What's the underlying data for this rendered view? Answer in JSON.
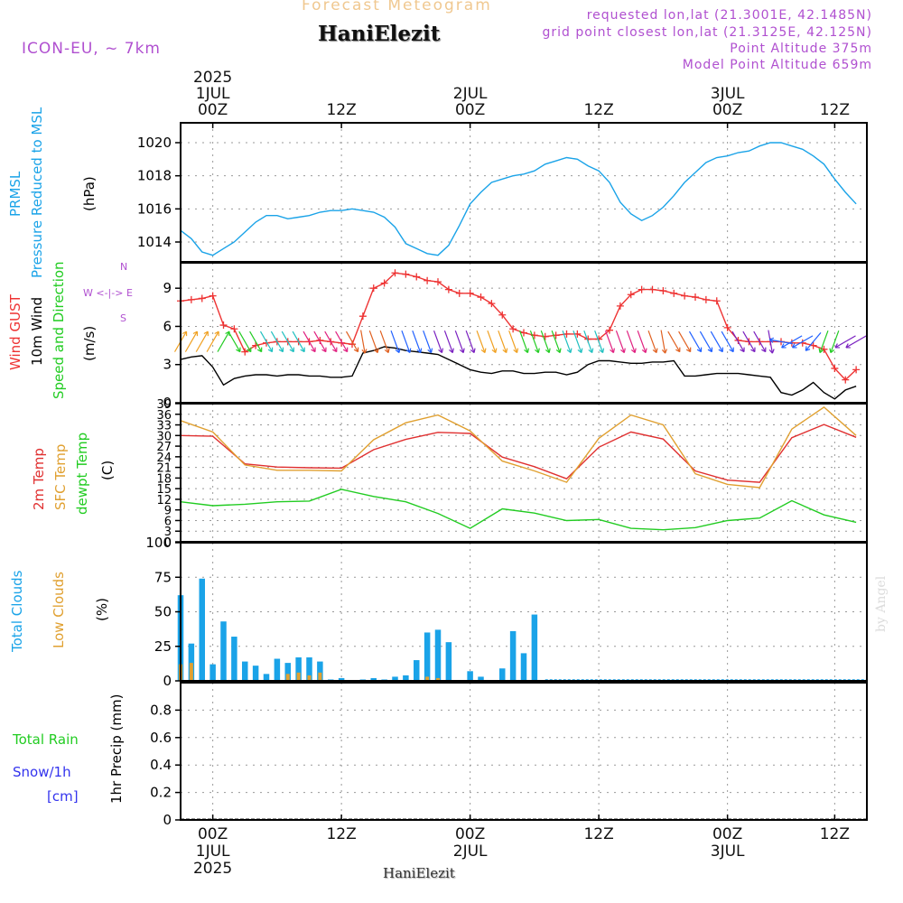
{
  "header": {
    "watermark_title": "Forecast Meteogram",
    "site_name": "HaniElezit",
    "model": "ICON-EU, ~ 7km",
    "requested": "requested lon,lat (21.3001E, 42.1485N)",
    "grid_point": "grid point closest lon,lat (21.3125E, 42.125N)",
    "point_altitude": "Point Altitude 375m",
    "model_altitude": "Model Point Altitude 659m"
  },
  "footer": {
    "site_name": "HaniElezit",
    "credit": "by Angel"
  },
  "time_axis": {
    "top_labels": [
      {
        "lines": [
          "2025",
          "1JUL",
          "00Z"
        ]
      },
      {
        "lines": [
          "12Z"
        ]
      },
      {
        "lines": [
          "2JUL",
          "00Z"
        ]
      },
      {
        "lines": [
          "12Z"
        ]
      },
      {
        "lines": [
          "3JUL",
          "00Z"
        ]
      },
      {
        "lines": [
          "12Z"
        ]
      }
    ],
    "bottom_labels": [
      {
        "lines": [
          "00Z",
          "1JUL",
          "2025"
        ]
      },
      {
        "lines": [
          "12Z"
        ]
      },
      {
        "lines": [
          "00Z",
          "2JUL"
        ]
      },
      {
        "lines": [
          "12Z"
        ]
      },
      {
        "lines": [
          "00Z",
          "3JUL"
        ]
      },
      {
        "lines": [
          "12Z"
        ]
      }
    ]
  },
  "labels": {
    "prmsl": "PRMSL",
    "pressure": "Pressure Reduced to MSL",
    "hpa": "(hPa)",
    "wind_gust": "Wind GUST",
    "wind_10m": "10m Wind",
    "wind_dir": "Speed and Direction",
    "ms": "(m/s)",
    "compass_we": "W <-|-> E",
    "compass_n": "N",
    "compass_s": "S",
    "temp_2m": "2m Temp",
    "temp_sfc": "SFC Temp",
    "temp_dew": "dewpt Temp",
    "temp_unit": "(C)",
    "total_clouds": "Total Clouds",
    "low_clouds": "Low Clouds",
    "pct": "(%)",
    "total_rain": "Total  Rain",
    "snow": "Snow/1h",
    "snow_unit": "[cm]",
    "precip": "1hr Precip (mm)"
  },
  "colors": {
    "pressure": "#1aa3e8",
    "gust": "#ee3333",
    "wind": "#000000",
    "temp2m": "#e03030",
    "sfc": "#e0a030",
    "dew": "#22cc22",
    "total_cloud": "#1aa3e8",
    "low_cloud": "#e0a030",
    "rain": "#22cc22",
    "snow": "#3333ee",
    "purple": "#b050d0"
  },
  "chart_data": [
    {
      "type": "line",
      "panel": "pressure",
      "x_unit": "hours from 2025-06-30 21Z",
      "ylim": [
        1012.8,
        1021.2
      ],
      "yticks": [
        1014,
        1016,
        1018,
        1020
      ],
      "grid": true,
      "series": [
        {
          "name": "PRMSL",
          "x": [
            0,
            1,
            2,
            3,
            4,
            5,
            6,
            7,
            8,
            9,
            10,
            11,
            12,
            13,
            14,
            15,
            16,
            17,
            18,
            19,
            20,
            21,
            22,
            23,
            24,
            25,
            26,
            27,
            28,
            29,
            30,
            31,
            32,
            33,
            34,
            35,
            36,
            37,
            38,
            39,
            40,
            41,
            42,
            43,
            44,
            45,
            46,
            47,
            48,
            49,
            50,
            51,
            52,
            53,
            54,
            55,
            56,
            57,
            58,
            59,
            60,
            61,
            62,
            63
          ],
          "y": [
            1014.7,
            1014.2,
            1013.4,
            1013.2,
            1013.6,
            1014.0,
            1014.6,
            1015.2,
            1015.6,
            1015.6,
            1015.4,
            1015.5,
            1015.6,
            1015.8,
            1015.9,
            1015.9,
            1016.0,
            1015.9,
            1015.8,
            1015.5,
            1014.9,
            1013.9,
            1013.6,
            1013.3,
            1013.2,
            1013.8,
            1015.0,
            1016.3,
            1017.0,
            1017.6,
            1017.8,
            1018.0,
            1018.1,
            1018.3,
            1018.7,
            1018.9,
            1019.1,
            1019.0,
            1018.6,
            1018.3,
            1017.6,
            1016.4,
            1015.7,
            1015.3,
            1015.6,
            1016.1,
            1016.8,
            1017.6,
            1018.2,
            1018.8,
            1019.1,
            1019.2,
            1019.4,
            1019.5,
            1019.8,
            1020.0,
            1020.0,
            1019.8,
            1019.6,
            1019.2,
            1018.7,
            1017.8,
            1017.0,
            1016.3
          ]
        }
      ]
    },
    {
      "type": "line",
      "panel": "wind",
      "ylim": [
        0,
        11
      ],
      "yticks": [
        0,
        3,
        6,
        9
      ],
      "grid": true,
      "series": [
        {
          "name": "Wind GUST",
          "x": [
            0,
            1,
            2,
            3,
            4,
            5,
            6,
            7,
            8,
            9,
            10,
            11,
            12,
            13,
            14,
            15,
            16,
            17,
            18,
            19,
            20,
            21,
            22,
            23,
            24,
            25,
            26,
            27,
            28,
            29,
            30,
            31,
            32,
            33,
            34,
            35,
            36,
            37,
            38,
            39,
            40,
            41,
            42,
            43,
            44,
            45,
            46,
            47,
            48,
            49,
            50,
            51,
            52,
            53,
            54,
            55,
            56,
            57,
            58,
            59,
            60,
            61,
            62,
            63
          ],
          "y": [
            8.0,
            8.1,
            8.2,
            8.4,
            6.1,
            5.8,
            4.0,
            4.5,
            4.7,
            4.8,
            4.8,
            4.8,
            4.8,
            4.9,
            4.8,
            4.7,
            4.6,
            6.8,
            9.0,
            9.4,
            10.2,
            10.1,
            9.9,
            9.6,
            9.5,
            8.9,
            8.6,
            8.6,
            8.3,
            7.8,
            6.9,
            5.8,
            5.5,
            5.3,
            5.2,
            5.3,
            5.4,
            5.4,
            5.0,
            5.0,
            5.7,
            7.6,
            8.5,
            8.9,
            8.9,
            8.8,
            8.6,
            8.4,
            8.3,
            8.1,
            8.0,
            5.9,
            4.9,
            4.8,
            4.8,
            4.8,
            4.8,
            4.7,
            4.7,
            4.5,
            4.2,
            2.7,
            1.8,
            2.6
          ]
        },
        {
          "name": "10m Wind",
          "x": [
            0,
            1,
            2,
            3,
            4,
            5,
            6,
            7,
            8,
            9,
            10,
            11,
            12,
            13,
            14,
            15,
            16,
            17,
            18,
            19,
            20,
            21,
            22,
            23,
            24,
            25,
            26,
            27,
            28,
            29,
            30,
            31,
            32,
            33,
            34,
            35,
            36,
            37,
            38,
            39,
            40,
            41,
            42,
            43,
            44,
            45,
            46,
            47,
            48,
            49,
            50,
            51,
            52,
            53,
            54,
            55,
            56,
            57,
            58,
            59,
            60,
            61,
            62,
            63
          ],
          "y": [
            3.4,
            3.6,
            3.7,
            2.8,
            1.4,
            1.9,
            2.1,
            2.2,
            2.2,
            2.1,
            2.2,
            2.2,
            2.1,
            2.1,
            2.0,
            2.0,
            2.1,
            3.9,
            4.1,
            4.4,
            4.3,
            4.1,
            4.0,
            3.9,
            3.8,
            3.4,
            3.0,
            2.6,
            2.4,
            2.3,
            2.5,
            2.5,
            2.3,
            2.3,
            2.4,
            2.4,
            2.2,
            2.4,
            3.0,
            3.3,
            3.3,
            3.2,
            3.1,
            3.1,
            3.2,
            3.2,
            3.3,
            2.1,
            2.1,
            2.2,
            2.3,
            2.3,
            2.3,
            2.2,
            2.1,
            2.0,
            0.8,
            0.6,
            1.0,
            1.6,
            0.8,
            0.3,
            1.0,
            1.3
          ]
        }
      ]
    },
    {
      "type": "line",
      "panel": "temperature",
      "ylim": [
        0,
        39
      ],
      "yticks": [
        0,
        3,
        6,
        9,
        12,
        15,
        18,
        21,
        24,
        27,
        30,
        33,
        36,
        39
      ],
      "grid": true,
      "series": [
        {
          "name": "2m Temp",
          "x": [
            0,
            3,
            6,
            9,
            12,
            15,
            18,
            21,
            24,
            27,
            30,
            33,
            36,
            39,
            42,
            45,
            48,
            51,
            54,
            57,
            60,
            63
          ],
          "y": [
            30.0,
            29.8,
            22.0,
            21.1,
            20.9,
            20.8,
            26.0,
            28.9,
            30.9,
            30.6,
            23.9,
            21.2,
            17.8,
            26.7,
            31.0,
            29.0,
            20.0,
            17.4,
            16.8,
            29.4,
            33.1,
            29.5
          ]
        },
        {
          "name": "SFC Temp",
          "x": [
            0,
            3,
            6,
            9,
            12,
            15,
            18,
            21,
            24,
            27,
            30,
            33,
            36,
            39,
            42,
            45,
            48,
            51,
            54,
            57,
            60,
            63
          ],
          "y": [
            34.2,
            31.0,
            21.7,
            20.2,
            20.2,
            20.0,
            28.8,
            33.6,
            35.8,
            31.3,
            22.8,
            20.0,
            16.8,
            29.2,
            35.8,
            33.0,
            19.2,
            16.2,
            15.3,
            31.8,
            38.0,
            30.0
          ]
        },
        {
          "name": "dewpt Temp",
          "x": [
            0,
            3,
            6,
            9,
            12,
            15,
            18,
            21,
            24,
            27,
            30,
            33,
            36,
            39,
            42,
            45,
            48,
            51,
            54,
            57,
            60,
            63
          ],
          "y": [
            11.3,
            10.2,
            10.6,
            11.3,
            11.5,
            14.8,
            12.8,
            11.3,
            8.0,
            3.8,
            9.3,
            8.1,
            6.0,
            6.3,
            3.8,
            3.4,
            4.0,
            6.0,
            6.7,
            11.6,
            7.6,
            5.5
          ]
        }
      ]
    },
    {
      "type": "bar",
      "panel": "clouds",
      "ylim": [
        0,
        100
      ],
      "yticks": [
        0,
        25,
        50,
        75,
        100
      ],
      "grid": true,
      "series": [
        {
          "name": "Total Clouds",
          "x": [
            0,
            1,
            2,
            3,
            4,
            5,
            6,
            7,
            8,
            9,
            10,
            11,
            12,
            13,
            14,
            15,
            16,
            17,
            18,
            19,
            20,
            21,
            22,
            23,
            24,
            25,
            26,
            27,
            28,
            29,
            30,
            31,
            32,
            33
          ],
          "values": [
            62,
            27,
            74,
            12,
            43,
            32,
            14,
            11,
            5,
            16,
            13,
            17,
            17,
            14,
            1,
            2,
            0,
            1,
            2,
            1,
            3,
            4,
            15,
            35,
            37,
            28,
            0,
            7,
            3,
            0,
            9,
            36,
            20,
            48
          ]
        },
        {
          "name": "Low Clouds",
          "x": [
            0,
            1,
            2,
            3,
            4,
            5,
            6,
            7,
            8,
            9,
            10,
            11,
            12,
            13,
            14,
            15,
            16,
            17,
            18,
            19,
            20,
            21,
            22,
            23,
            24,
            25,
            26,
            27,
            28,
            29,
            30,
            31,
            32,
            33
          ],
          "values": [
            12,
            13,
            0,
            0,
            0,
            0,
            0,
            0,
            0,
            0,
            5,
            6,
            4,
            6,
            0,
            0,
            0,
            0,
            0,
            0,
            0,
            0,
            0,
            3,
            2,
            0,
            0,
            0,
            0,
            0,
            0,
            0,
            0,
            0
          ]
        }
      ]
    },
    {
      "type": "bar",
      "panel": "precip",
      "ylim": [
        0,
        1.0
      ],
      "yticks": [
        0,
        0.2,
        0.4,
        0.6,
        0.8
      ],
      "grid": true,
      "series": [
        {
          "name": "Total Rain",
          "values": [
            0
          ]
        },
        {
          "name": "Snow/1h",
          "values": [
            0
          ]
        }
      ]
    }
  ],
  "wind_arrows": {
    "x": [
      0,
      1,
      2,
      3,
      4,
      5,
      6,
      7,
      8,
      9,
      10,
      11,
      12,
      13,
      14,
      15,
      16,
      17,
      18,
      19,
      20,
      21,
      22,
      23,
      24,
      25,
      26,
      27,
      28,
      29,
      30,
      31,
      32,
      33,
      34,
      35,
      36,
      37,
      38,
      39,
      40,
      41,
      42,
      43,
      44,
      45,
      46,
      47,
      48,
      49,
      50,
      51,
      52,
      53,
      54,
      55,
      56,
      57,
      58,
      59,
      60,
      61,
      62,
      63
    ],
    "direction_deg": [
      30,
      30,
      30,
      30,
      30,
      150,
      150,
      150,
      150,
      150,
      150,
      150,
      150,
      150,
      150,
      150,
      150,
      170,
      160,
      160,
      160,
      160,
      160,
      160,
      160,
      160,
      160,
      160,
      160,
      160,
      160,
      160,
      160,
      160,
      160,
      160,
      160,
      160,
      160,
      160,
      160,
      160,
      160,
      160,
      160,
      170,
      150,
      150,
      150,
      150,
      150,
      150,
      150,
      150,
      150,
      170,
      280,
      240,
      240,
      220,
      200,
      200,
      240,
      240
    ]
  }
}
